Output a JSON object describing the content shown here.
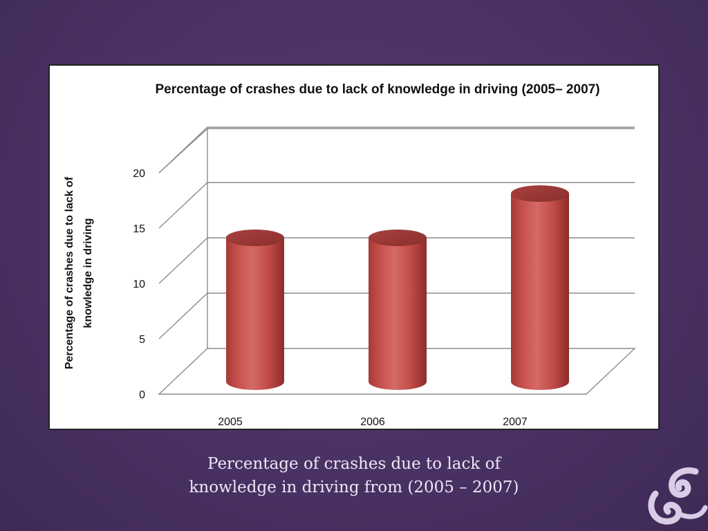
{
  "slide": {
    "caption_line1": "Percentage of crashes due to lack of",
    "caption_line2": "knowledge in driving from (2005 – 2007)",
    "background_color": "#4a3264",
    "ornament_icon": "flourish-icon"
  },
  "chart_data": {
    "type": "bar",
    "style": "3d-cylinder",
    "title": "Percentage of crashes due to lack of knowledge in driving (2005– 2007)",
    "ylabel_line1": "Percentage of crashes due to lack of",
    "ylabel_line2": "knowledge in driving",
    "xlabel": "",
    "categories": [
      "2005",
      "2006",
      "2007"
    ],
    "values": [
      13,
      13,
      17
    ],
    "ylim": [
      0,
      20
    ],
    "yticks": [
      "0",
      "5",
      "10",
      "15",
      "20"
    ],
    "grid": true,
    "legend": "none",
    "bar_color": "#c0504d"
  }
}
